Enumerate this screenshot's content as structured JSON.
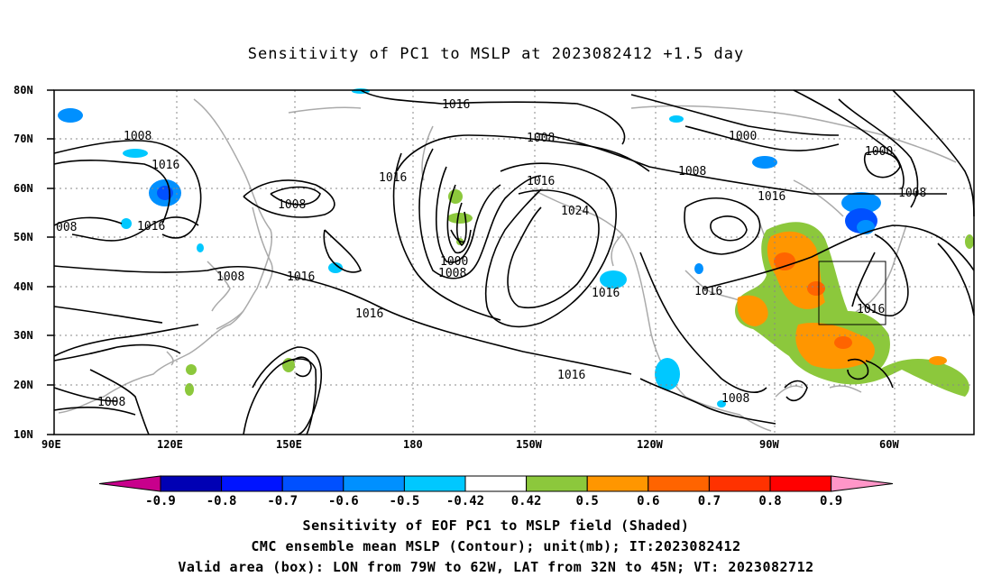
{
  "title": "Sensitivity of PC1 to MSLP at 2023082412 +1.5 day",
  "map": {
    "lat_labels": [
      "80N",
      "70N",
      "60N",
      "50N",
      "40N",
      "30N",
      "20N",
      "10N"
    ],
    "lon_labels": [
      "90E",
      "120E",
      "150E",
      "180",
      "150W",
      "120W",
      "90W",
      "60W"
    ],
    "contour_labels": [
      {
        "text": "1016"
      },
      {
        "text": "1008"
      },
      {
        "text": "1016"
      },
      {
        "text": "008"
      },
      {
        "text": "1016"
      },
      {
        "text": "1008"
      },
      {
        "text": "1008"
      },
      {
        "text": "1016"
      },
      {
        "text": "1016"
      },
      {
        "text": "1016"
      },
      {
        "text": "1000"
      },
      {
        "text": "1008"
      },
      {
        "text": "1008"
      },
      {
        "text": "1016"
      },
      {
        "text": "1024"
      },
      {
        "text": "1016"
      },
      {
        "text": "1016"
      },
      {
        "text": "1000"
      },
      {
        "text": "1000"
      },
      {
        "text": "1008"
      },
      {
        "text": "1016"
      },
      {
        "text": "1008"
      },
      {
        "text": "1016"
      },
      {
        "text": "1016"
      },
      {
        "text": "1008"
      },
      {
        "text": "1008"
      }
    ],
    "valid_box": {
      "lon_west": "79W",
      "lon_east": "62W",
      "lat_south": "32N",
      "lat_north": "45N"
    }
  },
  "colorbar": {
    "labels": [
      "-0.9",
      "-0.8",
      "-0.7",
      "-0.6",
      "-0.5",
      "-0.42",
      "0.42",
      "0.5",
      "0.6",
      "0.7",
      "0.8",
      "0.9"
    ],
    "colors": [
      "#0000b4",
      "#0014ff",
      "#0050ff",
      "#0090ff",
      "#00c8ff",
      "#ffffff",
      "#8cc83c",
      "#ff9600",
      "#ff6400",
      "#ff3200",
      "#ff0000"
    ],
    "low_tip_color": "#c8008c",
    "high_tip_color": "#ff96c8"
  },
  "footer": {
    "line1": "Sensitivity of EOF PC1 to MSLP field (Shaded)",
    "line2": "CMC ensemble mean MSLP (Contour); unit(mb); IT:2023082412",
    "line3": "Valid area (box): LON from 79W to 62W, LAT from 32N to 45N; VT: 2023082712"
  }
}
